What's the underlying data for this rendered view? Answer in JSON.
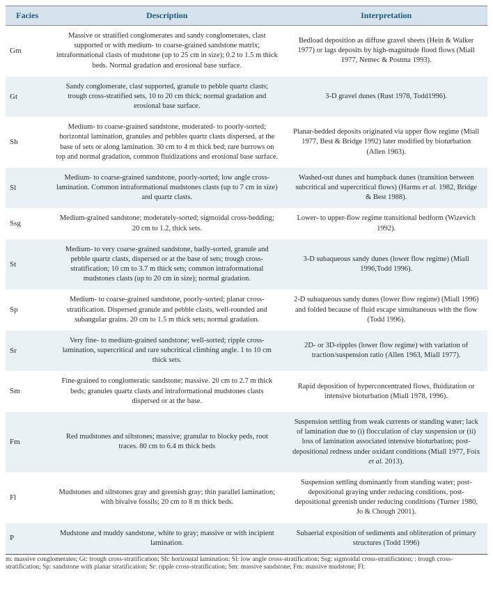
{
  "table": {
    "header_bg": "#d5e3ec",
    "header_color": "#1a5a7a",
    "row_even_bg": "#eaf1f5",
    "row_odd_bg": "#ffffff",
    "border_color": "#888888",
    "columns": [
      "Facies",
      "Description",
      "Interpretation"
    ],
    "rows": [
      {
        "facies": "Gm",
        "description": "Massive or stratified conglomerates and sandy conglomerates, clast supported or with medium- to coarse-grained sandstone matrix; intraformational clasts of mudstone (up to 25 cm in size); 0.2 to 1.5 m thick beds. Normal gradation and erosional base surface.",
        "interpretation": "Bedload deposition as diffuse gravel sheets (Hein & Walker 1977) or lags deposits by high-magnitude flood flows (Miall 1977, Nemec & Postma 1993)."
      },
      {
        "facies": "Gt",
        "description": "Sandy conglomerate, clast supported, granule to pebble quartz clasts; trough cross-stratified sets, 10 to 20 cm thick; normal gradation and erosional base surface.",
        "interpretation": "3-D gravel dunes (Rust 1978, Todd1996)."
      },
      {
        "facies": "Sh",
        "description": "Medium- to coarse-grained sandstone, moderated- to poorly-sorted; horizontal lamination, granules and pebbles quartz clasts dispersed, at the base of sets or along lamination. 30 cm to 4 m thick bed; rare burrows on top and normal gradation, common fluidizations and erosional base surface.",
        "interpretation": "Planar-bedded deposits originated via upper flow regime (Miall 1977, Best & Bridge 1992) later modified by bioturbation (Allen 1963)."
      },
      {
        "facies": "Sl",
        "description": "Medium- to coarse-grained sandstone, poorly-sorted; low angle cross-lamination. Common intraformational mudstones clasts (up to 7 cm in size) and quartz clasts.",
        "interpretation": "Washed-out dunes and humpback dunes (transition between subcritical and supercritical flows) (Harms et al. 1982, Bridge & Best 1988)."
      },
      {
        "facies": "Ssg",
        "description": "Medium-grained sandstone; moderately-sorted; sigmoidal cross-bedding; 20 cm to 1.2, thick sets.",
        "interpretation": "Lower- to upper-flow regime transitional bedform (Wizevich 1992)."
      },
      {
        "facies": "St",
        "description": "Medium- to very coarse-grained sandstone, badly-sorted, granule and pebble quartz clasts, dispersed or at the base of sets; trough cross-stratification; 10 cm to 3.7 m thick sets; common intraformational mudstones clasts (up to 20 cm in size); normal gradation.",
        "interpretation": "3-D subaqueous sandy dunes (lower flow regime) (Miall 1996,Todd 1996)."
      },
      {
        "facies": "Sp",
        "description": "Medium- to coarse-grained sandstone, poorly-sorted; planar cross-stratification. Dispersed granule and pebble clasts, well-rounded and subangular grains. 20 cm to 1.5 m thick sets; normal gradation.",
        "interpretation": "2-D subaqueous sandy dunes (lower flow regime) (Miall 1996) and folded because of fluid escape simultaneous with the flow (Todd 1996)."
      },
      {
        "facies": "Sr",
        "description": "Very fine- to medium-grained sandstone; well-sorted; ripple cross-lamination, supercritical and rare subcritical climbing angle. 1 to 10 cm thick sets.",
        "interpretation": "2D- or 3D-ripples (lower flow regime) with variation of traction/suspension ratio (Allen 1963, Miall 1977)."
      },
      {
        "facies": "Sm",
        "description": "Fine-grained to conglomeratic sandstone; massive. 20 cm to 2.7 m thick beds; granules quartz clasts and intraformational mudstones clasts dispersed or at the base.",
        "interpretation": "Rapid deposition of hyperconcentrated flows, fluidization or intensive bioturbation (Miall 1978, 1996)."
      },
      {
        "facies": "Fm",
        "description": "Red mudstones and siltstones; massive; granular to blocky peds, root traces. 80 cm to 6.4 m thick beds",
        "interpretation": "Suspension settling from weak currents or standing water; lack of lamination due to (i) flocculation of clay suspension or (ii) loss of lamination associated intensive bioturbation; post-depositional redness under oxidant conditions (Miall 1977, Foix et al. 2013)."
      },
      {
        "facies": "Fl",
        "description": "Mudstones and siltstones gray and greenish gray; thin parallel lamination; with bivalve fossils; 20 cm to 8 m thick beds.",
        "interpretation": "Suspension settling dominantly from standing water; post-depositional graying under reducing conditions, post-depositional greenish under reducing conditions (Turner 1980, Jo & Chough 2001)."
      },
      {
        "facies": "P",
        "description": "Mudstone and muddy sandstone, white to gray; massive or with incipient lamination.",
        "interpretation": "Subaerial exposition of sediments and obliteration of primary structures (Todd 1996)"
      }
    ]
  },
  "footnote": "m: massive conglomerates; Gt: trough cross-stratification; Sh: horizontal lamination; Sl: low angle cross-stratification; Ssg: sigmoidal cross-stratification; : trough cross-stratification; Sp: sandstone with planar stratification; Sr: ripple cross-stratification; Sm: massive sandstone; Fm: massive mudstone; Fl:"
}
